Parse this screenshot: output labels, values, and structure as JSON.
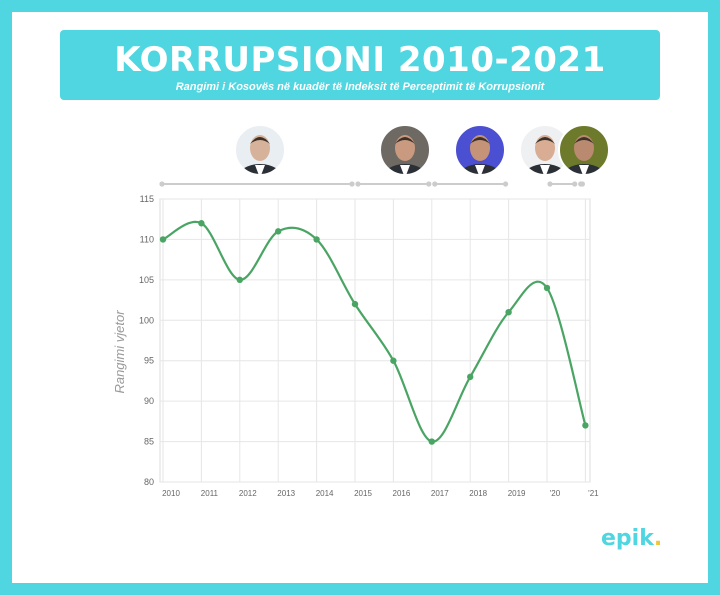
{
  "header": {
    "title": "KORRUPSIONI 2010-2021",
    "subtitle": "Rangimi i Kosovës në kuadër të Indeksit të Perceptimit të Korrupsionit"
  },
  "brand": {
    "name": "epik",
    "dot": "."
  },
  "colors": {
    "accent": "#4fd6e0",
    "line": "#4aa564",
    "brand_dot": "#f0c63a"
  },
  "portraits": [
    {
      "name": "portrait-1-icon"
    },
    {
      "name": "portrait-2-icon"
    },
    {
      "name": "portrait-3-icon"
    },
    {
      "name": "portrait-4-icon"
    },
    {
      "name": "portrait-5-icon"
    }
  ],
  "chart_data": {
    "type": "line",
    "categories": [
      "2010",
      "2011",
      "2012",
      "2013",
      "2014",
      "2015",
      "2016",
      "2017",
      "2018",
      "2019",
      "'20",
      "'21"
    ],
    "values": [
      110,
      112,
      105,
      111,
      110,
      102,
      95,
      85,
      93,
      101,
      104,
      87
    ],
    "ylabel": "Rangimi vjetor",
    "ylim": [
      80,
      115
    ],
    "yticks": [
      80,
      85,
      90,
      95,
      100,
      105,
      110,
      115
    ],
    "grid": true,
    "smooth": true,
    "timeline_segments": [
      [
        2010,
        2015
      ],
      [
        2015,
        2017
      ],
      [
        2017,
        2019
      ],
      [
        2020,
        2020.8
      ],
      [
        2020.8,
        2021
      ]
    ]
  }
}
